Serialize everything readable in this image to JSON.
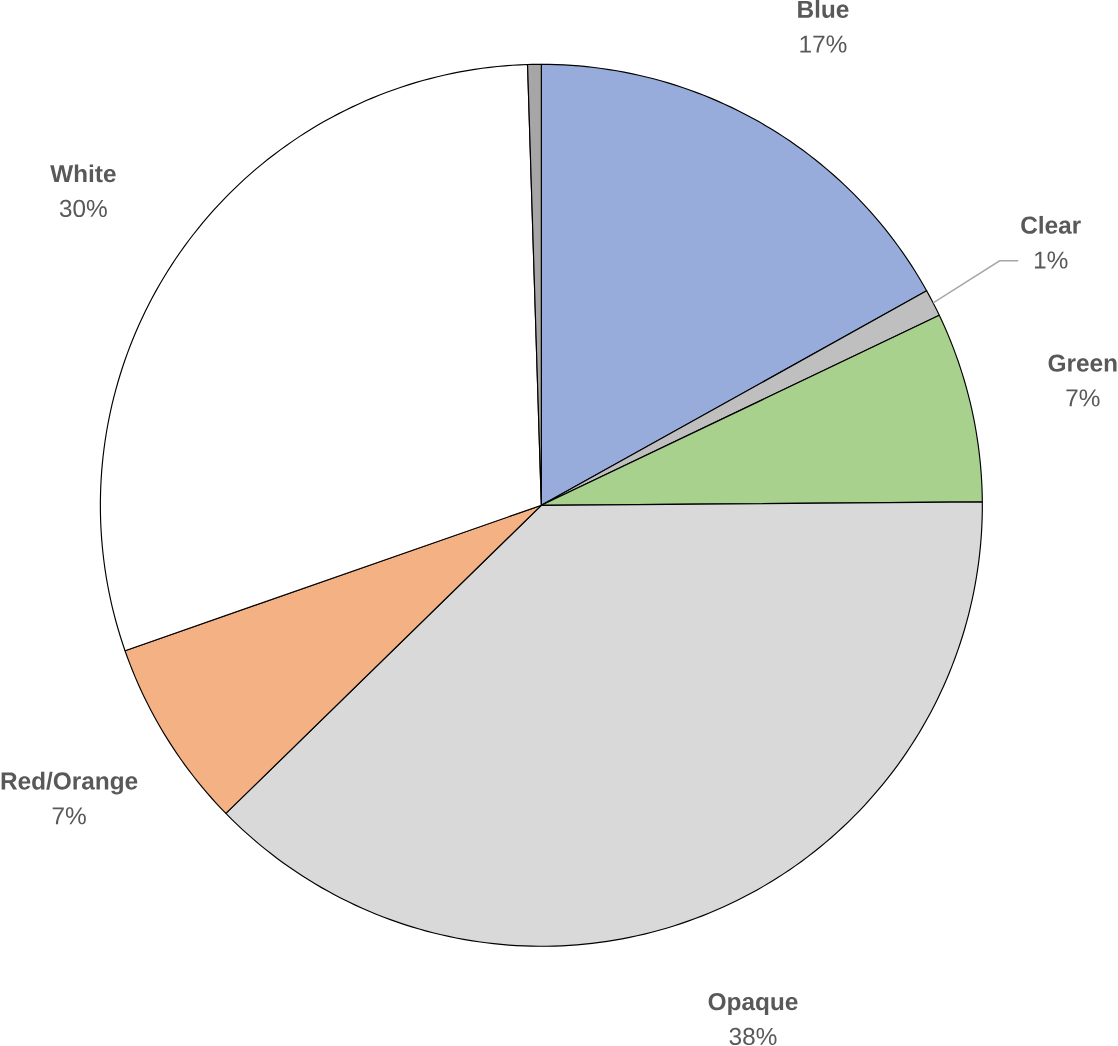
{
  "chart_data": {
    "type": "pie",
    "categories": [
      "Blue",
      "Clear",
      "Green",
      "Opaque",
      "Red/Orange",
      "White",
      null
    ],
    "values": [
      17,
      1,
      7,
      38,
      7,
      30,
      0.5
    ],
    "value_labels": [
      "17%",
      "1%",
      "7%",
      "38%",
      "7%",
      "30%",
      null
    ],
    "colors": [
      "#98acdc",
      "#bfbfbf",
      "#a9d18e",
      "#d9d9d9",
      "#f4b183",
      "#ffffff",
      "#a6a6a6"
    ]
  }
}
